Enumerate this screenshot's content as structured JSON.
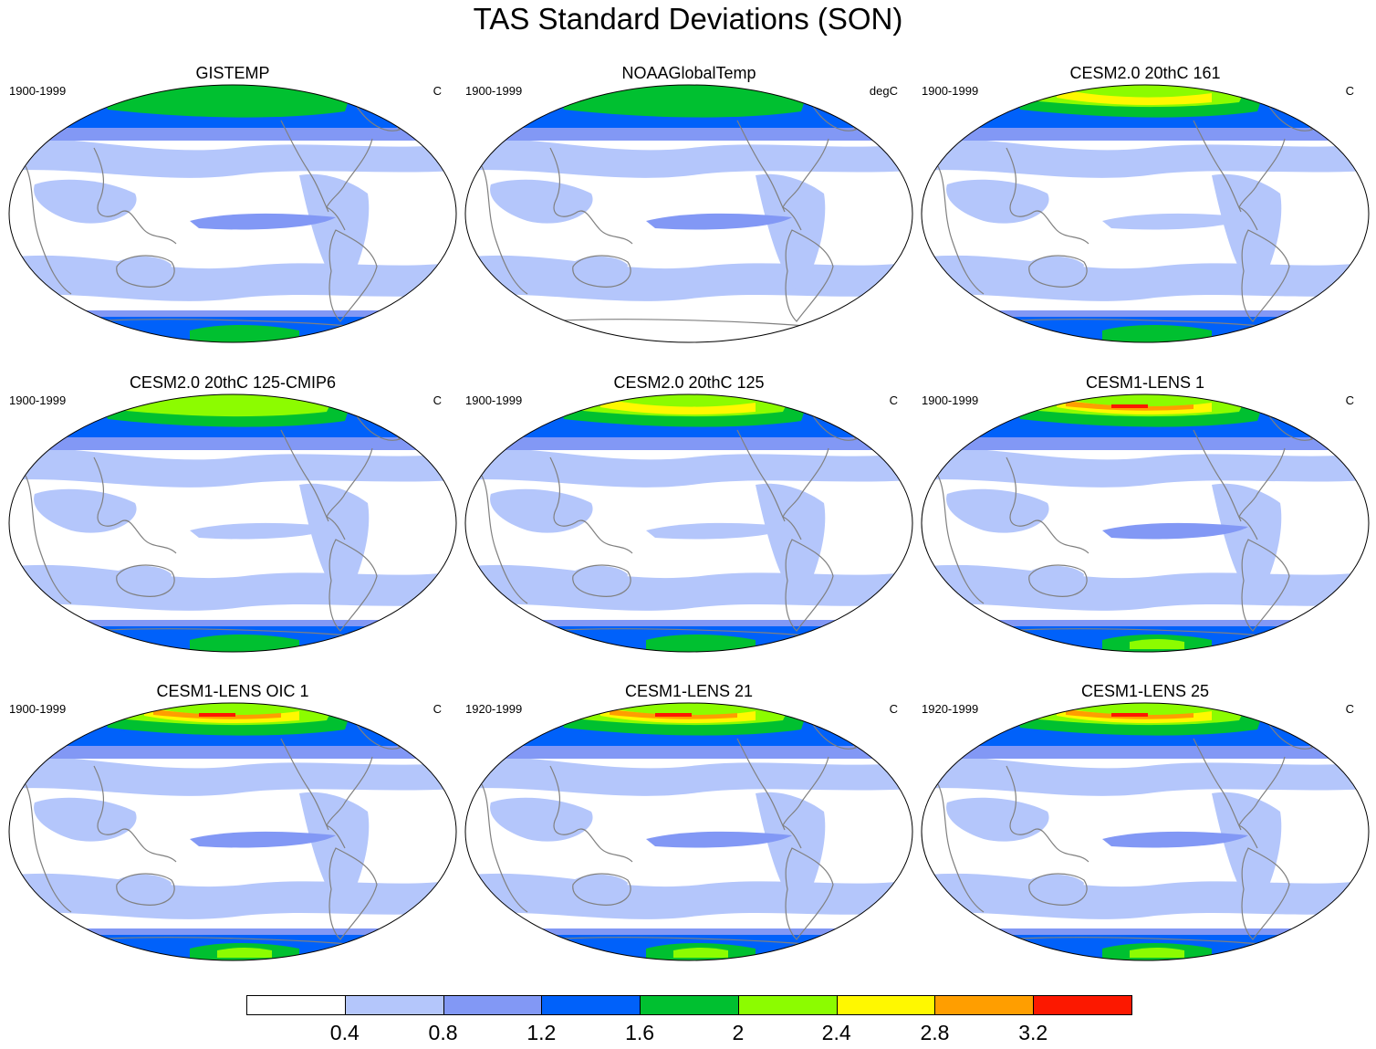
{
  "title": "TAS Standard Deviations (SON)",
  "palette": [
    "#ffffff",
    "#b4c6fb",
    "#8298f5",
    "#0061fa",
    "#00c030",
    "#8cfc00",
    "#fff800",
    "#ff9e00",
    "#fc1800"
  ],
  "map_style": {
    "ocean_color": "#ffffff",
    "coast_color": "#808080",
    "outline_color": "#000000"
  },
  "panels": [
    {
      "title": "GISTEMP",
      "period": "1900-1999",
      "units": "C",
      "arctic_level": 4,
      "antarctic_level": 4,
      "tropics_level": 2
    },
    {
      "title": "NOAAGlobalTemp",
      "period": "1900-1999",
      "units": "degC",
      "arctic_level": 4,
      "antarctic_level": 0,
      "tropics_level": 2
    },
    {
      "title": "CESM2.0 20thC 161",
      "period": "1900-1999",
      "units": "C",
      "arctic_level": 6,
      "antarctic_level": 4,
      "tropics_level": 1
    },
    {
      "title": "CESM2.0 20thC 125-CMIP6",
      "period": "1900-1999",
      "units": "C",
      "arctic_level": 5,
      "antarctic_level": 4,
      "tropics_level": 1
    },
    {
      "title": "CESM2.0 20thC 125",
      "period": "1900-1999",
      "units": "C",
      "arctic_level": 6,
      "antarctic_level": 4,
      "tropics_level": 1
    },
    {
      "title": "CESM1-LENS 1",
      "period": "1900-1999",
      "units": "C",
      "arctic_level": 8,
      "antarctic_level": 5,
      "tropics_level": 2
    },
    {
      "title": "CESM1-LENS OIC 1",
      "period": "1900-1999",
      "units": "C",
      "arctic_level": 8,
      "antarctic_level": 5,
      "tropics_level": 2
    },
    {
      "title": "CESM1-LENS 21",
      "period": "1920-1999",
      "units": "C",
      "arctic_level": 8,
      "antarctic_level": 5,
      "tropics_level": 2
    },
    {
      "title": "CESM1-LENS 25",
      "period": "1920-1999",
      "units": "C",
      "arctic_level": 8,
      "antarctic_level": 5,
      "tropics_level": 2
    }
  ],
  "colorbar": {
    "labels": [
      "0.4",
      "0.8",
      "1.2",
      "1.6",
      "2",
      "2.4",
      "2.8",
      "3.2"
    ]
  }
}
